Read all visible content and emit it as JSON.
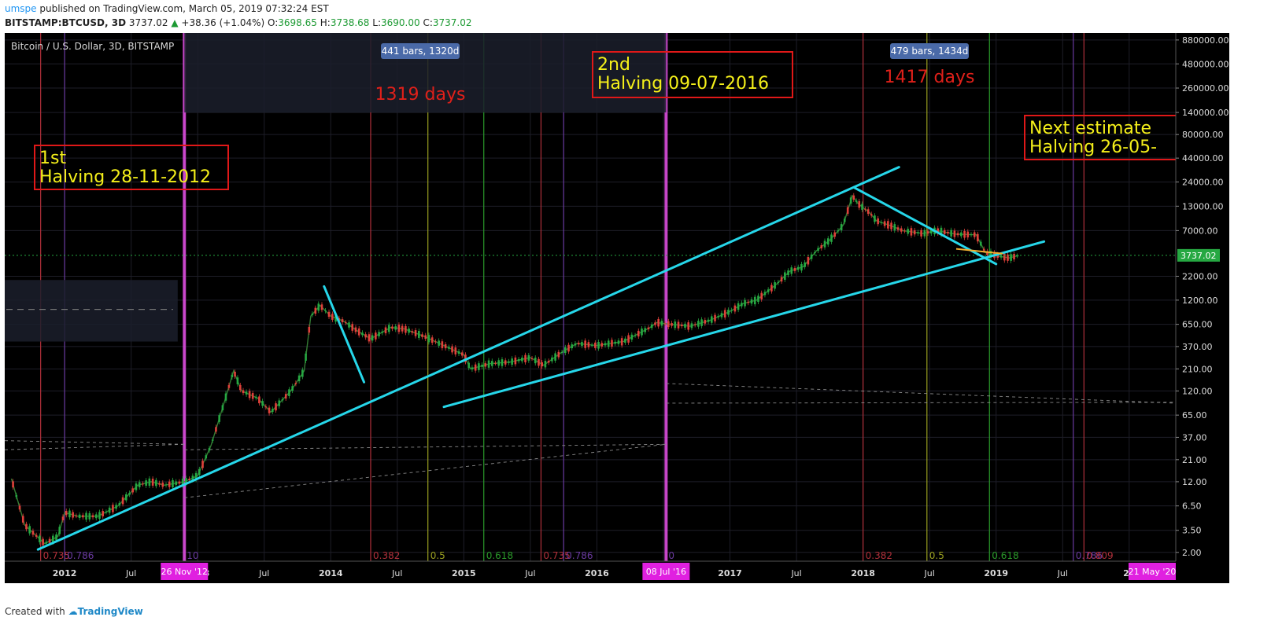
{
  "header": {
    "publisher_user": "umspe",
    "publisher_rest": " published on TradingView.com, March 05, 2019 07:32:24 EST",
    "symbol": "BITSTAMP:BTCUSD, 3D",
    "last": "3737.02",
    "change": "+38.36 (+1.04%)",
    "open_label": "O:",
    "open": "3698.65",
    "high_label": "H:",
    "high": "3738.68",
    "low_label": "L:",
    "low": "3690.00",
    "close_label": "C:",
    "close": "3737.02"
  },
  "footer": {
    "created_with": "Created with",
    "brand": "TradingView"
  },
  "colors": {
    "background": "#000000",
    "trendline": "#26d7ea",
    "candle_up": "#26a842",
    "candle_down": "#e0403a",
    "halving_line": "#d64bd6",
    "fib_red": "#b0303a",
    "fib_yellow": "#9aa020",
    "fib_green": "#2a9a2a",
    "fib_purple": "#6a3aa0",
    "annotation_text": "#f5f01a",
    "annotation_border": "#e01818",
    "days_text": "#e0201a",
    "price_label": "#26a842"
  },
  "chart_data": {
    "type": "line",
    "title": "Bitcoin / U.S. Dollar, 3D, BITSTAMP",
    "y_scale": "log",
    "ylim": [
      1.6,
      1050000
    ],
    "x_ticks": [
      "2012",
      "Jul",
      "2013",
      "Jul",
      "2014",
      "Jul",
      "2015",
      "Jul",
      "2016",
      "Jul",
      "2017",
      "Jul",
      "2018",
      "Jul",
      "2019",
      "Jul",
      "20"
    ],
    "x_tick_dates": [
      2012.0,
      2012.5,
      2013.0,
      2013.5,
      2014.0,
      2014.5,
      2015.0,
      2015.5,
      2016.0,
      2016.5,
      2017.0,
      2017.5,
      2018.0,
      2018.5,
      2019.0,
      2019.5,
      2020.0
    ],
    "xlim": [
      2011.55,
      2020.35
    ],
    "x_highlight_labels": [
      {
        "label": "26 Nov '12",
        "date": 2012.9
      },
      {
        "label": "08 Jul '16",
        "date": 2016.52
      },
      {
        "label": "21 May '20",
        "date": 2020.39
      }
    ],
    "y_ticks": [
      2.0,
      3.5,
      6.5,
      12.0,
      21.0,
      37.0,
      65.0,
      120.0,
      210.0,
      370.0,
      650.0,
      1200.0,
      2200.0,
      7000.0,
      13000.0,
      24000.0,
      44000.0,
      80000.0,
      140000.0,
      260000.0,
      480000.0,
      880000.0
    ],
    "y_tick_labels": [
      "2.00",
      "3.50",
      "6.50",
      "12.00",
      "21.00",
      "37.00",
      "65.00",
      "120.00",
      "210.00",
      "370.00",
      "650.00",
      "1200.00",
      "2200.00",
      "7000.00",
      "13000.00",
      "24000.00",
      "44000.00",
      "80000.00",
      "140000.00",
      "260000.00",
      "480000.00",
      "880000.00"
    ],
    "last_price": {
      "value": 3737.02,
      "label": "3737.02"
    },
    "series": [
      {
        "name": "BTCUSD",
        "x": [
          2011.6,
          2011.7,
          2011.85,
          2011.95,
          2012.0,
          2012.1,
          2012.25,
          2012.4,
          2012.55,
          2012.65,
          2012.75,
          2012.9,
          2013.0,
          2013.1,
          2013.2,
          2013.27,
          2013.33,
          2013.45,
          2013.55,
          2013.7,
          2013.8,
          2013.85,
          2013.92,
          2014.0,
          2014.1,
          2014.2,
          2014.3,
          2014.45,
          2014.55,
          2014.7,
          2014.85,
          2015.0,
          2015.05,
          2015.2,
          2015.35,
          2015.5,
          2015.6,
          2015.75,
          2015.85,
          2016.0,
          2016.2,
          2016.4,
          2016.45,
          2016.55,
          2016.7,
          2016.85,
          2017.0,
          2017.1,
          2017.2,
          2017.35,
          2017.45,
          2017.55,
          2017.65,
          2017.75,
          2017.85,
          2017.92,
          2017.96,
          2018.05,
          2018.1,
          2018.2,
          2018.3,
          2018.45,
          2018.55,
          2018.7,
          2018.85,
          2018.92,
          2019.0,
          2019.1,
          2019.17
        ],
        "values": [
          13,
          4,
          2.5,
          3,
          5.5,
          5,
          5,
          6.5,
          11,
          12,
          11,
          12,
          14,
          30,
          90,
          200,
          120,
          100,
          70,
          120,
          200,
          800,
          1050,
          800,
          700,
          550,
          450,
          600,
          580,
          480,
          380,
          300,
          210,
          240,
          250,
          280,
          230,
          330,
          400,
          380,
          420,
          600,
          680,
          650,
          620,
          720,
          900,
          1100,
          1200,
          1800,
          2500,
          2800,
          4200,
          5500,
          8000,
          17000,
          14000,
          11000,
          9000,
          8000,
          7000,
          6500,
          7000,
          6400,
          6300,
          4000,
          3700,
          3500,
          3737
        ]
      }
    ],
    "trendlines": [
      {
        "from": [
          2011.8,
          2.15
        ],
        "to": [
          2018.27,
          35000
        ]
      },
      {
        "from": [
          2013.95,
          1700
        ],
        "to": [
          2014.25,
          150
        ]
      },
      {
        "from": [
          2014.85,
          80
        ],
        "to": [
          2019.36,
          5300
        ]
      },
      {
        "from": [
          2017.93,
          21000
        ],
        "to": [
          2019.0,
          3000
        ]
      }
    ],
    "halving_lines": [
      {
        "date": 2012.9
      },
      {
        "date": 2016.52
      }
    ],
    "fib_lines": [
      {
        "date": 2011.82,
        "label": "0.735",
        "color": "fib_red"
      },
      {
        "date": 2012.0,
        "label": "0.786",
        "color": "fib_purple"
      },
      {
        "date": 2012.9,
        "label": "10",
        "color": "fib_purple"
      },
      {
        "date": 2014.3,
        "label": "0.382",
        "color": "fib_red"
      },
      {
        "date": 2014.73,
        "label": "0.5",
        "color": "fib_yellow"
      },
      {
        "date": 2015.15,
        "label": "0.618",
        "color": "fib_green"
      },
      {
        "date": 2015.58,
        "label": "0.735",
        "color": "fib_red"
      },
      {
        "date": 2015.75,
        "label": "0.786",
        "color": "fib_purple"
      },
      {
        "date": 2016.52,
        "label": "0",
        "color": "fib_purple"
      },
      {
        "date": 2018.0,
        "label": "0.382",
        "color": "fib_red"
      },
      {
        "date": 2018.48,
        "label": "0.5",
        "color": "fib_yellow"
      },
      {
        "date": 2018.95,
        "label": "0.618",
        "color": "fib_green"
      },
      {
        "date": 2019.58,
        "label": "0.786",
        "color": "fib_purple"
      },
      {
        "date": 2019.66,
        "label": "0.809",
        "color": "fib_red"
      }
    ],
    "annotations": [
      {
        "line1": "1st",
        "line2": "Halving 28-11-2012"
      },
      {
        "line1": "2nd",
        "line2": "Halving  09-07-2016"
      },
      {
        "line1": "Next estimate",
        "line2": "Halving  26-05-"
      }
    ],
    "range_labels": [
      {
        "bars": "441 bars, 1320d",
        "days": "1319 days"
      },
      {
        "bars": "479 bars, 1434d",
        "days": "1417 days"
      }
    ]
  }
}
